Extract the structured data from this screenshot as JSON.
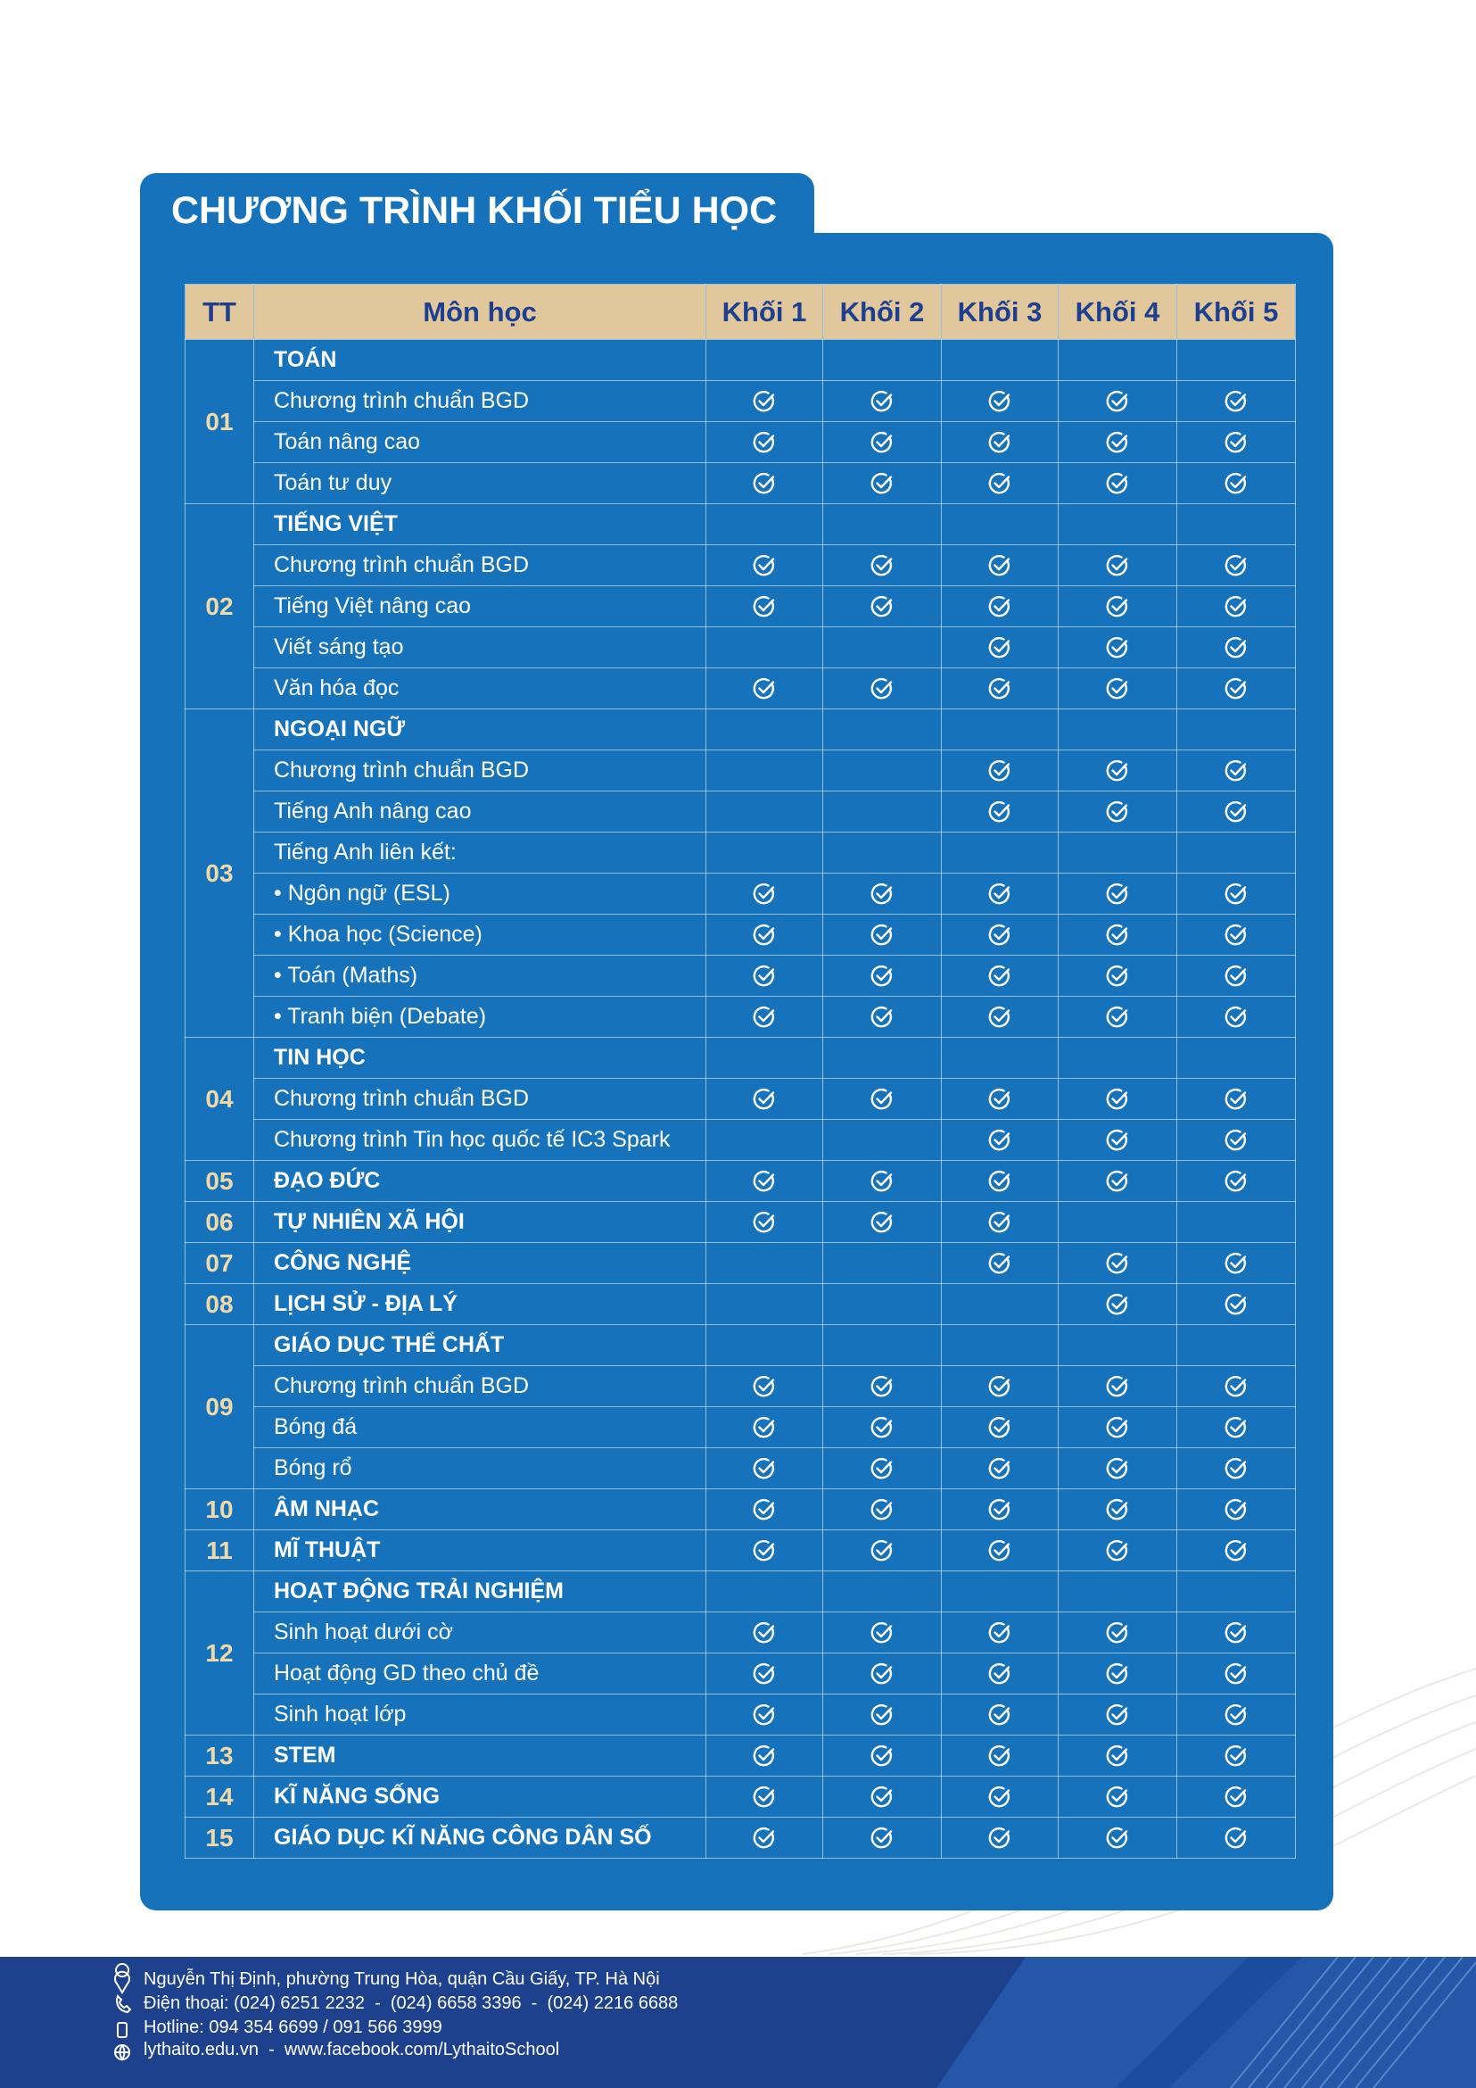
{
  "title": "CHƯƠNG TRÌNH KHỐI TIỂU HỌC",
  "table": {
    "header": [
      "TT",
      "Môn học",
      "Khối 1",
      "Khối 2",
      "Khối 3",
      "Khối 4",
      "Khối 5"
    ],
    "groups": [
      {
        "number": "01",
        "rows": [
          {
            "label": "TOÁN",
            "checks": [
              false,
              false,
              false,
              false,
              false
            ]
          },
          {
            "label": "Chương trình chuẩn BGD",
            "checks": [
              true,
              true,
              true,
              true,
              true
            ]
          },
          {
            "label": "Toán nâng cao",
            "checks": [
              true,
              true,
              true,
              true,
              true
            ]
          },
          {
            "label": "Toán tư duy",
            "checks": [
              true,
              true,
              true,
              true,
              true
            ]
          }
        ]
      },
      {
        "number": "02",
        "rows": [
          {
            "label": "TIẾNG VIỆT",
            "checks": [
              false,
              false,
              false,
              false,
              false
            ]
          },
          {
            "label": "Chương trình chuẩn BGD",
            "checks": [
              true,
              true,
              true,
              true,
              true
            ]
          },
          {
            "label": "Tiếng Việt nâng cao",
            "checks": [
              true,
              true,
              true,
              true,
              true
            ]
          },
          {
            "label": "Viết sáng tạo",
            "checks": [
              false,
              false,
              true,
              true,
              true
            ]
          },
          {
            "label": "Văn hóa đọc",
            "checks": [
              true,
              true,
              true,
              true,
              true
            ]
          }
        ]
      },
      {
        "number": "03",
        "rows": [
          {
            "label": "NGOẠI NGỮ",
            "checks": [
              false,
              false,
              false,
              false,
              false
            ]
          },
          {
            "label": "Chương trình chuẩn BGD",
            "checks": [
              false,
              false,
              true,
              true,
              true
            ]
          },
          {
            "label": "Tiếng Anh nâng cao",
            "checks": [
              false,
              false,
              true,
              true,
              true
            ]
          },
          {
            "label": "Tiếng Anh liên kết:",
            "checks": [
              false,
              false,
              false,
              false,
              false
            ]
          },
          {
            "label": "• Ngôn ngữ (ESL)",
            "checks": [
              true,
              true,
              true,
              true,
              true
            ]
          },
          {
            "label": "• Khoa học (Science)",
            "checks": [
              true,
              true,
              true,
              true,
              true
            ]
          },
          {
            "label": "• Toán (Maths)",
            "checks": [
              true,
              true,
              true,
              true,
              true
            ]
          },
          {
            "label": "• Tranh biện (Debate)",
            "checks": [
              true,
              true,
              true,
              true,
              true
            ]
          }
        ]
      },
      {
        "number": "04",
        "rows": [
          {
            "label": "TIN HỌC",
            "checks": [
              false,
              false,
              false,
              false,
              false
            ]
          },
          {
            "label": "Chương trình chuẩn BGD",
            "checks": [
              true,
              true,
              true,
              true,
              true
            ]
          },
          {
            "label": "Chương trình Tin học quốc tế IC3 Spark",
            "checks": [
              false,
              false,
              true,
              true,
              true
            ]
          }
        ]
      },
      {
        "number": "05",
        "rows": [
          {
            "label": "ĐẠO ĐỨC",
            "checks": [
              true,
              true,
              true,
              true,
              true
            ]
          }
        ]
      },
      {
        "number": "06",
        "rows": [
          {
            "label": "TỰ NHIÊN XÃ HỘI",
            "checks": [
              true,
              true,
              true,
              false,
              false
            ]
          }
        ]
      },
      {
        "number": "07",
        "rows": [
          {
            "label": "CÔNG NGHỆ",
            "checks": [
              false,
              false,
              true,
              true,
              true
            ]
          }
        ]
      },
      {
        "number": "08",
        "rows": [
          {
            "label": "LỊCH SỬ - ĐỊA LÝ",
            "checks": [
              false,
              false,
              false,
              true,
              true
            ]
          }
        ]
      },
      {
        "number": "09",
        "rows": [
          {
            "label": "GIÁO DỤC THỂ CHẤT",
            "checks": [
              false,
              false,
              false,
              false,
              false
            ]
          },
          {
            "label": "Chương trình chuẩn BGD",
            "checks": [
              true,
              true,
              true,
              true,
              true
            ]
          },
          {
            "label": "Bóng đá",
            "checks": [
              true,
              true,
              true,
              true,
              true
            ]
          },
          {
            "label": "Bóng rổ",
            "checks": [
              true,
              true,
              true,
              true,
              true
            ]
          }
        ]
      },
      {
        "number": "10",
        "rows": [
          {
            "label": "ÂM NHẠC",
            "checks": [
              true,
              true,
              true,
              true,
              true
            ]
          }
        ]
      },
      {
        "number": "11",
        "rows": [
          {
            "label": "MĨ THUẬT",
            "checks": [
              true,
              true,
              true,
              true,
              true
            ]
          }
        ]
      },
      {
        "number": "12",
        "rows": [
          {
            "label": "HOẠT ĐỘNG TRẢI NGHIỆM",
            "checks": [
              false,
              false,
              false,
              false,
              false
            ]
          },
          {
            "label": "Sinh hoạt dưới cờ",
            "checks": [
              true,
              true,
              true,
              true,
              true
            ]
          },
          {
            "label": "Hoạt động GD theo chủ đề",
            "checks": [
              true,
              true,
              true,
              true,
              true
            ]
          },
          {
            "label": "Sinh hoạt lớp",
            "checks": [
              true,
              true,
              true,
              true,
              true
            ]
          }
        ]
      },
      {
        "number": "13",
        "rows": [
          {
            "label": "STEM",
            "checks": [
              true,
              true,
              true,
              true,
              true
            ]
          }
        ]
      },
      {
        "number": "14",
        "rows": [
          {
            "label": "KĨ NĂNG SỐNG",
            "checks": [
              true,
              true,
              true,
              true,
              true
            ]
          }
        ]
      },
      {
        "number": "15",
        "rows": [
          {
            "label": "GIÁO DỤC KĨ NĂNG CÔNG DÂN SỐ",
            "checks": [
              true,
              true,
              true,
              true,
              true
            ]
          }
        ]
      }
    ]
  },
  "footer": {
    "address": "Nguyễn Thị Định, phường Trung Hòa, quận Cầu Giấy, TP. Hà Nội",
    "phone": "Điện thoại: (024) 6251 2232  -  (024) 6658 3396  -  (024) 2216 6688",
    "hotline": "Hotline: 094 354 6699 / 091 566 3999",
    "web": "lythaito.edu.vn  -  www.facebook.com/LythaitoSchool"
  }
}
